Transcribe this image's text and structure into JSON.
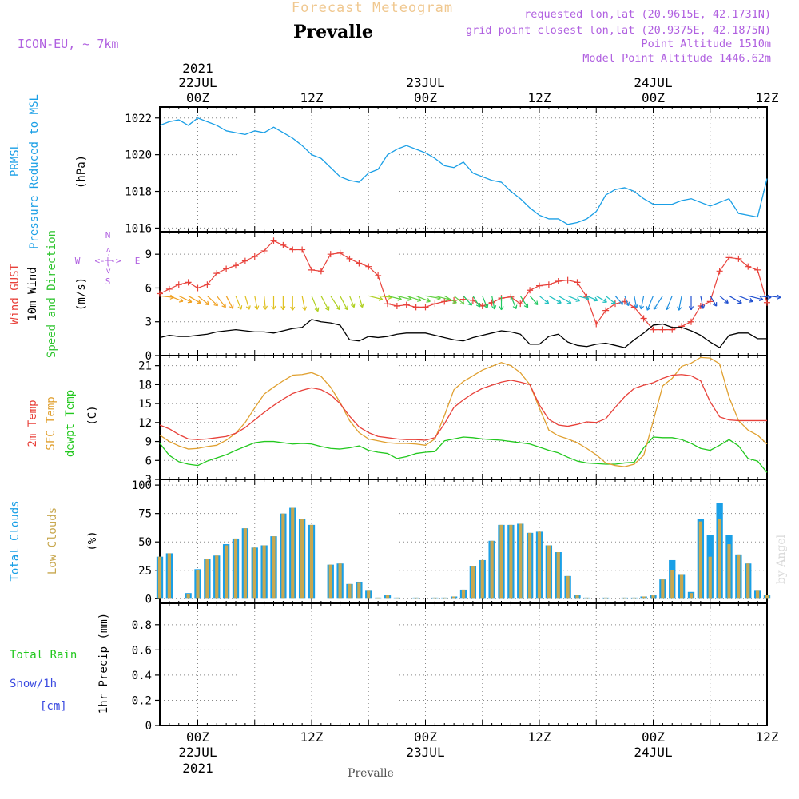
{
  "header": {
    "app_title": "Forecast Meteogram",
    "place": "Prevalle",
    "model": "ICON-EU, ~ 7km",
    "requested": "requested lon,lat (20.9615E, 42.1731N)",
    "grid_point": "grid point closest lon,lat (20.9375E, 42.1875N)",
    "point_altitude": "Point Altitude 1510m",
    "model_altitude": "Model Point Altitude 1446.62m"
  },
  "footer": {
    "place": "Prevalle",
    "watermark": "by Angel"
  },
  "time_axis": {
    "top_ticks": [
      "00Z",
      "12Z",
      "00Z",
      "12Z",
      "00Z",
      "12Z"
    ],
    "top_dates": [
      "22JUL",
      "23JUL",
      "24JUL"
    ],
    "top_year": "2021",
    "bottom_ticks": [
      "00Z",
      "12Z",
      "00Z",
      "12Z",
      "00Z",
      "12Z"
    ],
    "bottom_dates": [
      "22JUL",
      "23JUL",
      "24JUL"
    ],
    "bottom_year": "2021",
    "start_hour": -4,
    "end_hour": 60
  },
  "compass": {
    "n": "N",
    "s": "S",
    "w": "W",
    "e": "E",
    "arrow": "<-|->"
  },
  "panels": {
    "pressure": {
      "label_line1": "PRMSL",
      "label_line2": "Pressure Reduced to MSL",
      "unit": "(hPa)",
      "color": "#1a9fe6"
    },
    "wind": {
      "label_gust": "Wind GUST",
      "label_wind": "10m Wind",
      "label_dir": "Speed and Direction",
      "unit": "(m/s)",
      "gust_color": "#e8413a",
      "wind_color": "#000000",
      "dir_color": "#2fc42f"
    },
    "temp": {
      "label_t2m": "2m Temp",
      "label_sfc": "SFC Temp",
      "label_dew": "dewpt Temp",
      "unit": "(C)",
      "t2m_color": "#e8413a",
      "sfc_color": "#e0a030",
      "dew_color": "#22c81e"
    },
    "clouds": {
      "label_total": "Total Clouds",
      "label_low": "Low Clouds",
      "unit": "(%)",
      "total_color": "#1a9fe6",
      "low_color": "#c8a850"
    },
    "precip": {
      "label_rain": "Total Rain",
      "label_snow": "Snow/1h",
      "label_cm": "[cm]",
      "axis_label": "1hr Precip (mm)",
      "rain_color": "#22c81e",
      "snow_color": "#3a4ae0"
    }
  },
  "chart_data": [
    {
      "type": "line",
      "name": "pressure",
      "x_hours": [
        -4,
        -3,
        -2,
        -1,
        0,
        1,
        2,
        3,
        4,
        5,
        6,
        7,
        8,
        9,
        10,
        11,
        12,
        13,
        14,
        15,
        16,
        17,
        18,
        19,
        20,
        21,
        22,
        23,
        24,
        25,
        26,
        27,
        28,
        29,
        30,
        31,
        32,
        33,
        34,
        35,
        36,
        37,
        38,
        39,
        40,
        41,
        42,
        43,
        44,
        45,
        46,
        47,
        48,
        49,
        50,
        51,
        52,
        53,
        54,
        55,
        56,
        57,
        58,
        59,
        60
      ],
      "series": [
        {
          "values": [
            1021.6,
            1021.8,
            1021.9,
            1021.6,
            1022.0,
            1021.8,
            1021.6,
            1021.3,
            1021.2,
            1021.1,
            1021.3,
            1021.2,
            1021.5,
            1021.2,
            1020.9,
            1020.5,
            1020.0,
            1019.8,
            1019.3,
            1018.8,
            1018.6,
            1018.5,
            1019.0,
            1019.2,
            1020.0,
            1020.3,
            1020.5,
            1020.3,
            1020.1,
            1019.8,
            1019.4,
            1019.3,
            1019.6,
            1019.0,
            1018.8,
            1018.6,
            1018.5,
            1018.0,
            1017.6,
            1017.1,
            1016.7,
            1016.5,
            1016.5,
            1016.2,
            1016.3,
            1016.5,
            1016.9,
            1017.8,
            1018.1,
            1018.2,
            1018.0,
            1017.6,
            1017.3,
            1017.3,
            1017.3,
            1017.5,
            1017.6,
            1017.4,
            1017.2,
            1017.4,
            1017.6,
            1016.8,
            1016.7,
            1016.6,
            1018.7
          ]
        }
      ],
      "yticks": [
        1016,
        1018,
        1020,
        1022
      ],
      "ylim": [
        1015.8,
        1022.6
      ]
    },
    {
      "type": "line",
      "name": "wind",
      "x_hours": [
        -4,
        -3,
        -2,
        -1,
        0,
        1,
        2,
        3,
        4,
        5,
        6,
        7,
        8,
        9,
        10,
        11,
        12,
        13,
        14,
        15,
        16,
        17,
        18,
        19,
        20,
        21,
        22,
        23,
        24,
        25,
        26,
        27,
        28,
        29,
        30,
        31,
        32,
        33,
        34,
        35,
        36,
        37,
        38,
        39,
        40,
        41,
        42,
        43,
        44,
        45,
        46,
        47,
        48,
        49,
        50,
        51,
        52,
        53,
        54,
        55,
        56,
        57,
        58,
        59,
        60
      ],
      "series": [
        {
          "name": "Wind GUST",
          "values": [
            5.5,
            5.9,
            6.3,
            6.5,
            6.0,
            6.3,
            7.3,
            7.7,
            8.0,
            8.4,
            8.8,
            9.3,
            10.2,
            9.8,
            9.4,
            9.4,
            7.6,
            7.5,
            9.0,
            9.1,
            8.6,
            8.2,
            7.9,
            7.1,
            4.6,
            4.4,
            4.5,
            4.3,
            4.3,
            4.6,
            4.8,
            4.9,
            5.0,
            4.9,
            4.4,
            4.7,
            5.1,
            5.2,
            4.6,
            5.8,
            6.2,
            6.3,
            6.6,
            6.7,
            6.5,
            5.2,
            2.8,
            4.0,
            4.6,
            4.8,
            4.3,
            3.3,
            2.3,
            2.3,
            2.3,
            2.6,
            3.0,
            4.4,
            4.8,
            7.5,
            8.7,
            8.6,
            7.9,
            7.6,
            4.7
          ]
        },
        {
          "name": "10m Wind",
          "values": [
            1.6,
            1.8,
            1.7,
            1.7,
            1.8,
            1.9,
            2.1,
            2.2,
            2.3,
            2.2,
            2.1,
            2.1,
            2.0,
            2.2,
            2.4,
            2.5,
            3.2,
            3.0,
            2.9,
            2.7,
            1.4,
            1.3,
            1.7,
            1.6,
            1.7,
            1.9,
            2.0,
            2.0,
            2.0,
            1.8,
            1.6,
            1.4,
            1.3,
            1.6,
            1.8,
            2.0,
            2.2,
            2.1,
            1.9,
            1.0,
            1.0,
            1.7,
            1.9,
            1.2,
            0.9,
            0.8,
            1.0,
            1.1,
            0.9,
            0.7,
            1.4,
            2.0,
            2.7,
            2.8,
            2.5,
            2.5,
            2.2,
            1.8,
            1.2,
            0.7,
            1.8,
            2.0,
            2.0,
            1.5,
            1.5
          ]
        }
      ],
      "wind_barb_dirs_deg": [
        270,
        250,
        245,
        240,
        230,
        225,
        215,
        205,
        200,
        195,
        190,
        185,
        180,
        180,
        180,
        190,
        200,
        205,
        210,
        205,
        200,
        195,
        260,
        270,
        280,
        280,
        285,
        290,
        275,
        280,
        300,
        310,
        320,
        330,
        340,
        350,
        0,
        340,
        330,
        320,
        310,
        300,
        300,
        290,
        280,
        290,
        300,
        310,
        320,
        340,
        350,
        10,
        20,
        30,
        20,
        10,
        0,
        350,
        330,
        310,
        300,
        290,
        280,
        270,
        270
      ],
      "yticks": [
        0,
        3,
        6,
        9
      ],
      "ylim": [
        0,
        11
      ]
    },
    {
      "type": "line",
      "name": "temperature",
      "x_hours": [
        -4,
        -3,
        -2,
        -1,
        0,
        1,
        2,
        3,
        4,
        5,
        6,
        7,
        8,
        9,
        10,
        11,
        12,
        13,
        14,
        15,
        16,
        17,
        18,
        19,
        20,
        21,
        22,
        23,
        24,
        25,
        26,
        27,
        28,
        29,
        30,
        31,
        32,
        33,
        34,
        35,
        36,
        37,
        38,
        39,
        40,
        41,
        42,
        43,
        44,
        45,
        46,
        47,
        48,
        49,
        50,
        51,
        52,
        53,
        54,
        55,
        56,
        57,
        58,
        59,
        60
      ],
      "series": [
        {
          "name": "2m Temp",
          "values": [
            11.6,
            11.0,
            10.1,
            9.4,
            9.3,
            9.4,
            9.6,
            9.8,
            10.3,
            11.2,
            12.4,
            13.6,
            14.7,
            15.7,
            16.6,
            17.1,
            17.5,
            17.2,
            16.4,
            15.0,
            13.0,
            11.3,
            10.4,
            9.8,
            9.6,
            9.4,
            9.3,
            9.3,
            9.2,
            9.6,
            11.8,
            14.4,
            15.6,
            16.6,
            17.4,
            17.9,
            18.4,
            18.7,
            18.4,
            18.0,
            14.8,
            12.5,
            11.6,
            11.4,
            11.7,
            12.1,
            12.0,
            12.6,
            14.4,
            16.1,
            17.4,
            17.9,
            18.3,
            19.0,
            19.5,
            19.6,
            19.4,
            18.6,
            15.3,
            12.9,
            12.4,
            12.3,
            12.3,
            12.3,
            12.3
          ]
        },
        {
          "name": "SFC Temp",
          "values": [
            10.0,
            9.0,
            8.3,
            7.8,
            7.9,
            8.2,
            8.4,
            9.2,
            10.3,
            12.0,
            14.3,
            16.5,
            17.6,
            18.6,
            19.5,
            19.6,
            19.9,
            19.3,
            17.6,
            15.2,
            12.3,
            10.4,
            9.4,
            9.1,
            8.8,
            8.7,
            8.7,
            8.6,
            8.4,
            9.4,
            13.1,
            17.2,
            18.5,
            19.4,
            20.3,
            20.9,
            21.5,
            21.0,
            19.9,
            18.0,
            14.3,
            10.8,
            9.9,
            9.4,
            8.8,
            7.9,
            6.9,
            5.6,
            5.2,
            5.0,
            5.4,
            6.8,
            12.2,
            17.8,
            19.0,
            20.9,
            21.4,
            22.3,
            22.2,
            21.3,
            16.0,
            12.3,
            10.8,
            10.0,
            8.6
          ]
        },
        {
          "name": "dewpt Temp",
          "values": [
            8.7,
            6.8,
            5.8,
            5.4,
            5.2,
            5.9,
            6.4,
            6.9,
            7.6,
            8.2,
            8.8,
            9.0,
            9.0,
            8.8,
            8.6,
            8.7,
            8.6,
            8.2,
            7.9,
            7.8,
            8.0,
            8.3,
            7.6,
            7.3,
            7.1,
            6.3,
            6.6,
            7.1,
            7.3,
            7.4,
            9.1,
            9.4,
            9.7,
            9.6,
            9.4,
            9.3,
            9.2,
            9.0,
            8.8,
            8.6,
            8.1,
            7.6,
            7.2,
            6.5,
            5.9,
            5.6,
            5.5,
            5.4,
            5.4,
            5.6,
            5.7,
            8.0,
            9.7,
            9.6,
            9.6,
            9.3,
            8.7,
            7.9,
            7.6,
            8.4,
            9.3,
            8.3,
            6.3,
            5.9,
            4.1
          ]
        }
      ],
      "yticks": [
        3,
        6,
        9,
        12,
        15,
        18,
        21
      ],
      "ylim": [
        3,
        22.6
      ]
    },
    {
      "type": "bar",
      "name": "clouds",
      "x_hours": [
        -4,
        -3,
        -2,
        -1,
        0,
        1,
        2,
        3,
        4,
        5,
        6,
        7,
        8,
        9,
        10,
        11,
        12,
        13,
        14,
        15,
        16,
        17,
        18,
        19,
        20,
        21,
        22,
        23,
        24,
        25,
        26,
        27,
        28,
        29,
        30,
        31,
        32,
        33,
        34,
        35,
        36,
        37,
        38,
        39,
        40,
        41,
        42,
        43,
        44,
        45,
        46,
        47,
        48,
        49,
        50,
        51,
        52,
        53,
        54,
        55,
        56,
        57,
        58,
        59,
        60
      ],
      "series": [
        {
          "name": "Total Clouds",
          "values": [
            37,
            40,
            0,
            5,
            26,
            35,
            38,
            48,
            53,
            62,
            45,
            47,
            55,
            75,
            80,
            70,
            65,
            0,
            30,
            31,
            13,
            15,
            7,
            1,
            3,
            1,
            0,
            1,
            0,
            1,
            1,
            2,
            8,
            29,
            34,
            51,
            65,
            65,
            66,
            58,
            59,
            47,
            41,
            20,
            3,
            1,
            0,
            1,
            0,
            1,
            1,
            2,
            3,
            17,
            34,
            21,
            6,
            70,
            56,
            84,
            56,
            39,
            31,
            7,
            3
          ]
        },
        {
          "name": "Low Clouds",
          "values": [
            37,
            40,
            0,
            4,
            25,
            35,
            38,
            47,
            53,
            62,
            45,
            47,
            55,
            75,
            80,
            70,
            65,
            0,
            30,
            31,
            13,
            14,
            7,
            1,
            3,
            1,
            0,
            1,
            0,
            1,
            1,
            2,
            8,
            29,
            34,
            51,
            65,
            65,
            66,
            58,
            59,
            47,
            41,
            20,
            3,
            1,
            0,
            1,
            0,
            1,
            1,
            2,
            3,
            17,
            25,
            21,
            5,
            68,
            37,
            70,
            48,
            39,
            31,
            7,
            3
          ]
        }
      ],
      "yticks": [
        0,
        25,
        50,
        75,
        100
      ],
      "ylim": [
        -4,
        105
      ]
    },
    {
      "type": "bar",
      "name": "precipitation",
      "x_hours": [
        -4,
        -3,
        -2,
        -1,
        0,
        1,
        2,
        3,
        4,
        5,
        6,
        7,
        8,
        9,
        10,
        11,
        12,
        13,
        14,
        15,
        16,
        17,
        18,
        19,
        20,
        21,
        22,
        23,
        24,
        25,
        26,
        27,
        28,
        29,
        30,
        31,
        32,
        33,
        34,
        35,
        36,
        37,
        38,
        39,
        40,
        41,
        42,
        43,
        44,
        45,
        46,
        47,
        48,
        49,
        50,
        51,
        52,
        53,
        54,
        55,
        56,
        57,
        58,
        59,
        60
      ],
      "series": [
        {
          "name": "Total Rain",
          "values": [
            0,
            0,
            0,
            0,
            0,
            0,
            0,
            0,
            0,
            0,
            0,
            0,
            0,
            0,
            0,
            0,
            0,
            0,
            0,
            0,
            0,
            0,
            0,
            0,
            0,
            0,
            0,
            0,
            0,
            0,
            0,
            0,
            0,
            0,
            0,
            0,
            0,
            0,
            0,
            0,
            0,
            0,
            0,
            0,
            0,
            0,
            0,
            0,
            0,
            0,
            0,
            0,
            0,
            0,
            0,
            0,
            0,
            0,
            0,
            0,
            0,
            0,
            0,
            0,
            0
          ]
        }
      ],
      "yticks": [
        0,
        0.2,
        0.4,
        0.6,
        0.8
      ],
      "ylim": [
        0,
        0.97
      ]
    }
  ]
}
